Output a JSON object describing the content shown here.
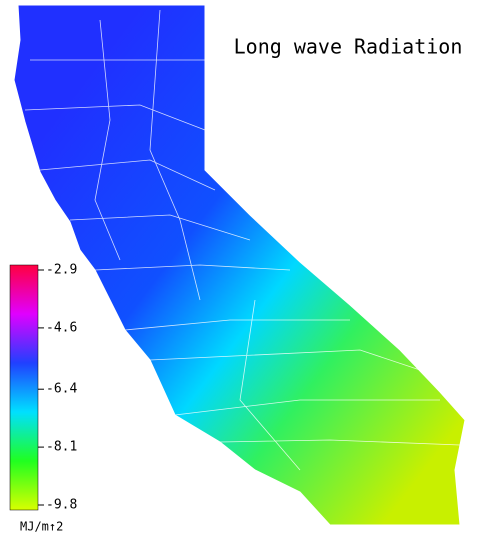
{
  "title": "Long wave Radiation",
  "colorbar": {
    "label": "MJ/m↑2",
    "lim": [
      -2.9,
      -9.8
    ],
    "ticks": [
      -2.9,
      -4.6,
      -6.4,
      -8.1,
      -9.8
    ],
    "colors": [
      "#ff0040",
      "#e000ff",
      "#2040ff",
      "#00e0ff",
      "#20ff20",
      "#d8ff00"
    ]
  }
}
